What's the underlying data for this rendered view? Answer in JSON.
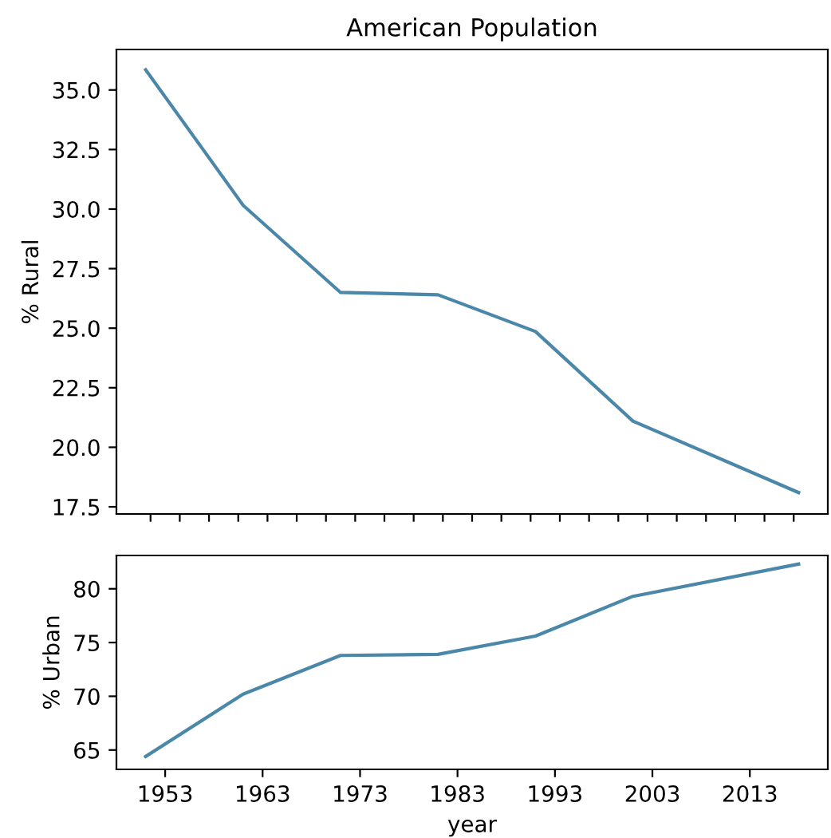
{
  "chart_data": [
    {
      "type": "line",
      "title": "American Population",
      "ylabel": "% Rural",
      "tick_labels": "y",
      "x": [
        1951,
        1961,
        1971,
        1981,
        1991,
        2001,
        2018
      ],
      "series": [
        {
          "color": "#4a87a8",
          "values": [
            35.85,
            30.16,
            26.5,
            26.4,
            24.86,
            21.1,
            18.1
          ]
        }
      ],
      "xlim": [
        1948,
        2021
      ],
      "ylim": [
        17.2,
        36.7
      ],
      "xticks": [
        {
          "value": 1951.5,
          "label": null
        },
        {
          "value": 1954.5,
          "label": null
        },
        {
          "value": 1957.5,
          "label": null
        },
        {
          "value": 1960.5,
          "label": null
        },
        {
          "value": 1963.5,
          "label": null
        },
        {
          "value": 1966.5,
          "label": null
        },
        {
          "value": 1969.5,
          "label": null
        },
        {
          "value": 1972.5,
          "label": null
        },
        {
          "value": 1975.5,
          "label": null
        },
        {
          "value": 1978.5,
          "label": null
        },
        {
          "value": 1981.5,
          "label": null
        },
        {
          "value": 1984.5,
          "label": null
        },
        {
          "value": 1987.5,
          "label": null
        },
        {
          "value": 1990.5,
          "label": null
        },
        {
          "value": 1993.5,
          "label": null
        },
        {
          "value": 1996.5,
          "label": null
        },
        {
          "value": 1999.5,
          "label": null
        },
        {
          "value": 2002.5,
          "label": null
        },
        {
          "value": 2005.5,
          "label": null
        },
        {
          "value": 2008.5,
          "label": null
        },
        {
          "value": 2011.5,
          "label": null
        },
        {
          "value": 2014.5,
          "label": null
        },
        {
          "value": 2017.5,
          "label": null
        }
      ],
      "yticks": [
        {
          "value": 17.5,
          "label": "17.5"
        },
        {
          "value": 20,
          "label": "20.0"
        },
        {
          "value": 22.5,
          "label": "22.5"
        },
        {
          "value": 25,
          "label": "25.0"
        },
        {
          "value": 27.5,
          "label": "27.5"
        },
        {
          "value": 30,
          "label": "30.0"
        },
        {
          "value": 32.5,
          "label": "32.5"
        },
        {
          "value": 35,
          "label": "35.0"
        }
      ],
      "grid": false,
      "legend": false
    },
    {
      "type": "line",
      "xlabel": "year",
      "ylabel": "% Urban",
      "x": [
        1951,
        1961,
        1971,
        1981,
        1991,
        2001,
        2018
      ],
      "series": [
        {
          "color": "#4a87a8",
          "values": [
            64.4,
            70.2,
            73.8,
            73.9,
            75.6,
            79.3,
            82.3
          ]
        }
      ],
      "xlim": [
        1948,
        2021
      ],
      "ylim": [
        63.2,
        83.1
      ],
      "xticks": [
        1953,
        1963,
        1973,
        1983,
        1993,
        2003,
        2013
      ],
      "yticks": [
        65,
        70,
        75,
        80
      ],
      "grid": false,
      "legend": false
    }
  ]
}
